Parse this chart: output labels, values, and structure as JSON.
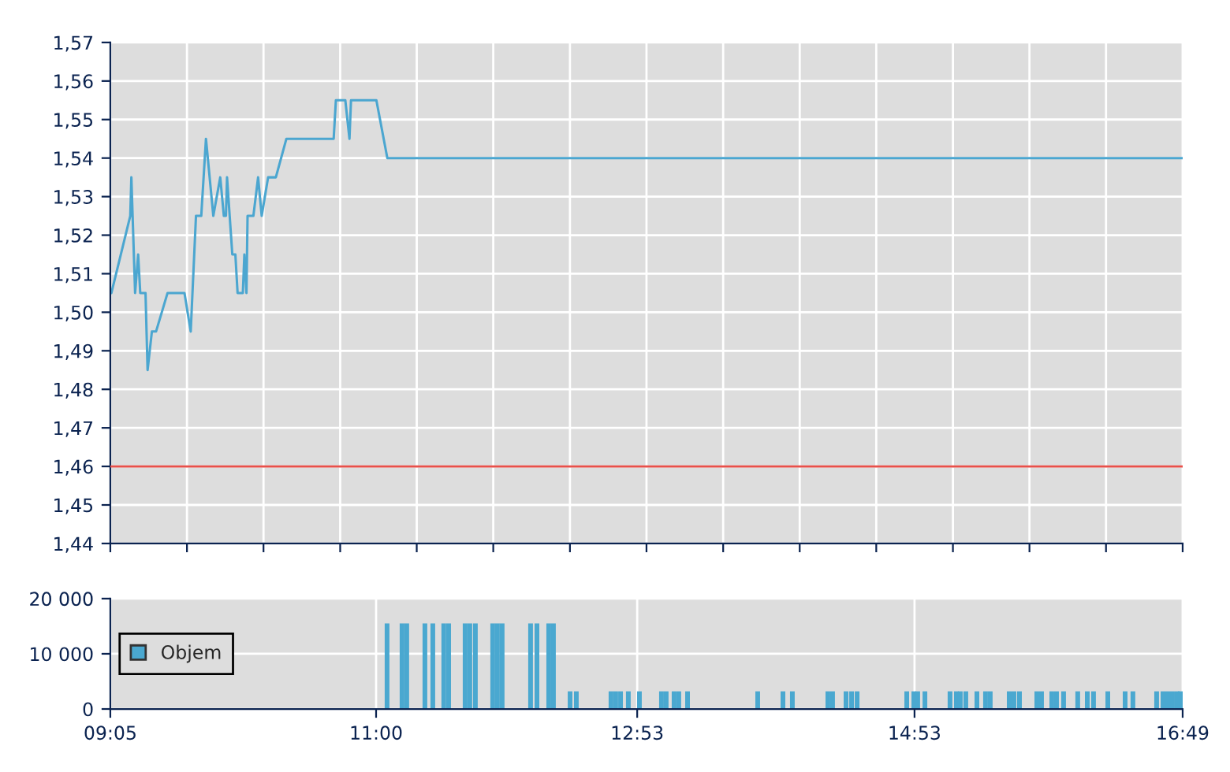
{
  "chart_data": [
    {
      "type": "line",
      "x": [
        9.091,
        9.227,
        9.235,
        9.262,
        9.284,
        9.299,
        9.337,
        9.352,
        9.383,
        9.413,
        9.496,
        9.618,
        9.663,
        9.701,
        9.739,
        9.773,
        9.826,
        9.876,
        9.902,
        9.917,
        9.925,
        9.963,
        9.985,
        10.001,
        10.039,
        10.05,
        10.065,
        10.073,
        10.115,
        10.149,
        10.175,
        10.221,
        10.277,
        10.353,
        10.694,
        10.71,
        10.778,
        10.808,
        10.819,
        11.002,
        11.081,
        16.8167
      ],
      "series": [
        {
          "color": "#4ba6d0",
          "values": [
            1.505,
            1.525,
            1.535,
            1.505,
            1.515,
            1.505,
            1.505,
            1.485,
            1.495,
            1.495,
            1.505,
            1.505,
            1.495,
            1.525,
            1.525,
            1.545,
            1.525,
            1.535,
            1.525,
            1.525,
            1.535,
            1.515,
            1.515,
            1.505,
            1.505,
            1.515,
            1.505,
            1.525,
            1.525,
            1.535,
            1.525,
            1.535,
            1.535,
            1.545,
            1.545,
            1.555,
            1.555,
            1.545,
            1.555,
            1.555,
            1.54,
            1.54
          ]
        }
      ],
      "xlim": [
        9.0833,
        16.8167
      ],
      "xticks": [
        {
          "value": 9.0833,
          "label": null
        },
        {
          "value": 9.636,
          "label": null
        },
        {
          "value": 10.188,
          "label": null
        },
        {
          "value": 10.741,
          "label": null
        },
        {
          "value": 11.293,
          "label": null
        },
        {
          "value": 11.845,
          "label": null
        },
        {
          "value": 12.398,
          "label": null
        },
        {
          "value": 12.95,
          "label": null
        },
        {
          "value": 13.503,
          "label": null
        },
        {
          "value": 14.055,
          "label": null
        },
        {
          "value": 14.607,
          "label": null
        },
        {
          "value": 15.16,
          "label": null
        },
        {
          "value": 15.712,
          "label": null
        },
        {
          "value": 16.264,
          "label": null
        },
        {
          "value": 16.8167,
          "label": null
        }
      ],
      "ylim": [
        1.44,
        1.57
      ],
      "yticks": [
        {
          "value": 1.44,
          "label": "1,44"
        },
        {
          "value": 1.45,
          "label": "1,45"
        },
        {
          "value": 1.46,
          "label": "1,46"
        },
        {
          "value": 1.47,
          "label": "1,47"
        },
        {
          "value": 1.48,
          "label": "1,48"
        },
        {
          "value": 1.49,
          "label": "1,49"
        },
        {
          "value": 1.5,
          "label": "1,50"
        },
        {
          "value": 1.51,
          "label": "1,51"
        },
        {
          "value": 1.52,
          "label": "1,52"
        },
        {
          "value": 1.53,
          "label": "1,53"
        },
        {
          "value": 1.54,
          "label": "1,54"
        },
        {
          "value": 1.55,
          "label": "1,55"
        },
        {
          "value": 1.56,
          "label": "1,56"
        },
        {
          "value": 1.57,
          "label": "1,57"
        }
      ],
      "ref_lines": [
        {
          "axis": "y",
          "value": 1.46,
          "color": "#e8504a"
        }
      ],
      "grid": true,
      "tick_labels": "y",
      "marker": "none",
      "line_style": "solid"
    },
    {
      "type": "bar",
      "x": [
        11.079,
        11.187,
        11.221,
        11.352,
        11.409,
        11.488,
        11.523,
        11.642,
        11.676,
        11.716,
        11.841,
        11.875,
        11.909,
        12.114,
        12.16,
        12.245,
        12.279,
        12.399,
        12.444,
        12.694,
        12.728,
        12.763,
        12.819,
        12.899,
        13.058,
        13.092,
        13.149,
        13.183,
        13.246,
        13.752,
        13.934,
        14.002,
        14.258,
        14.292,
        14.389,
        14.429,
        14.469,
        14.827,
        14.878,
        14.906,
        14.958,
        15.139,
        15.185,
        15.213,
        15.253,
        15.333,
        15.395,
        15.429,
        15.566,
        15.6,
        15.64,
        15.765,
        15.799,
        15.873,
        15.907,
        15.958,
        16.06,
        16.129,
        16.174,
        16.277,
        16.402,
        16.458,
        16.629,
        16.675,
        16.709,
        16.743,
        16.777,
        16.8
      ],
      "series": [
        {
          "name": "Objem",
          "color": "#4aa8d0",
          "values": [
            15500,
            15500,
            15500,
            15500,
            15500,
            15500,
            15500,
            15500,
            15500,
            15500,
            15500,
            15500,
            15500,
            15500,
            15500,
            15500,
            15500,
            3200,
            3200,
            3200,
            3200,
            3200,
            3200,
            3200,
            3200,
            3200,
            3200,
            3200,
            3200,
            3200,
            3200,
            3200,
            3200,
            3200,
            3200,
            3200,
            3200,
            3200,
            3200,
            3200,
            3200,
            3200,
            3200,
            3200,
            3200,
            3200,
            3200,
            3200,
            3200,
            3200,
            3200,
            3200,
            3200,
            3200,
            3200,
            3200,
            3200,
            3200,
            3200,
            3200,
            3200,
            3200,
            3200,
            3200,
            3200,
            3200,
            3200,
            3200
          ]
        }
      ],
      "xlim": [
        9.0833,
        16.8167
      ],
      "xticks": [
        {
          "value": 9.0833,
          "label": "09:05"
        },
        {
          "value": 11.0,
          "label": "11:00"
        },
        {
          "value": 12.883,
          "label": "12:53"
        },
        {
          "value": 14.883,
          "label": "14:53"
        },
        {
          "value": 16.8167,
          "label": "16:49"
        }
      ],
      "ylim": [
        0,
        20000
      ],
      "yticks": [
        0,
        {
          "value": 10000,
          "label": "10 000"
        },
        {
          "value": 20000,
          "label": "20 000"
        }
      ],
      "grid": true,
      "legend": "left"
    }
  ]
}
